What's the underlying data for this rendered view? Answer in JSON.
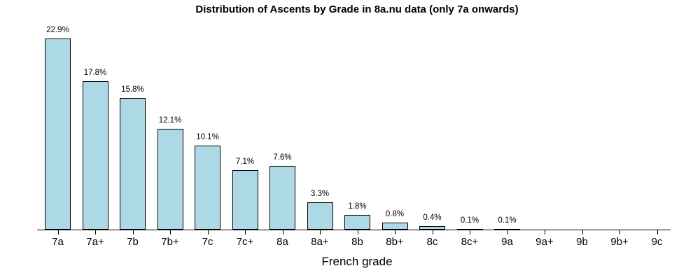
{
  "chart_data": {
    "type": "bar",
    "title": "Distribution of Ascents by Grade in 8a.nu data (only 7a onwards)",
    "xlabel": "French grade",
    "ylabel": "",
    "categories": [
      "7a",
      "7a+",
      "7b",
      "7b+",
      "7c",
      "7c+",
      "8a",
      "8a+",
      "8b",
      "8b+",
      "8c",
      "8c+",
      "9a",
      "9a+",
      "9b",
      "9b+",
      "9c"
    ],
    "values": [
      22.9,
      17.8,
      15.8,
      12.1,
      10.1,
      7.1,
      7.6,
      3.3,
      1.8,
      0.8,
      0.4,
      0.1,
      0.1,
      0,
      0,
      0,
      0
    ],
    "value_labels": [
      "22.9%",
      "17.8%",
      "15.8%",
      "12.1%",
      "10.1%",
      "7.1%",
      "7.6%",
      "3.3%",
      "1.8%",
      "0.8%",
      "0.4%",
      "0.1%",
      "0.1%",
      "",
      "",
      "",
      ""
    ],
    "unit": "%",
    "ylim": [
      0,
      24
    ],
    "grid": "off",
    "legend": "none",
    "colors": {
      "bar_fill": "#ADD8E6",
      "bar_border": "#000000",
      "axis": "#000000",
      "text": "#000000",
      "background": "#ffffff"
    }
  }
}
